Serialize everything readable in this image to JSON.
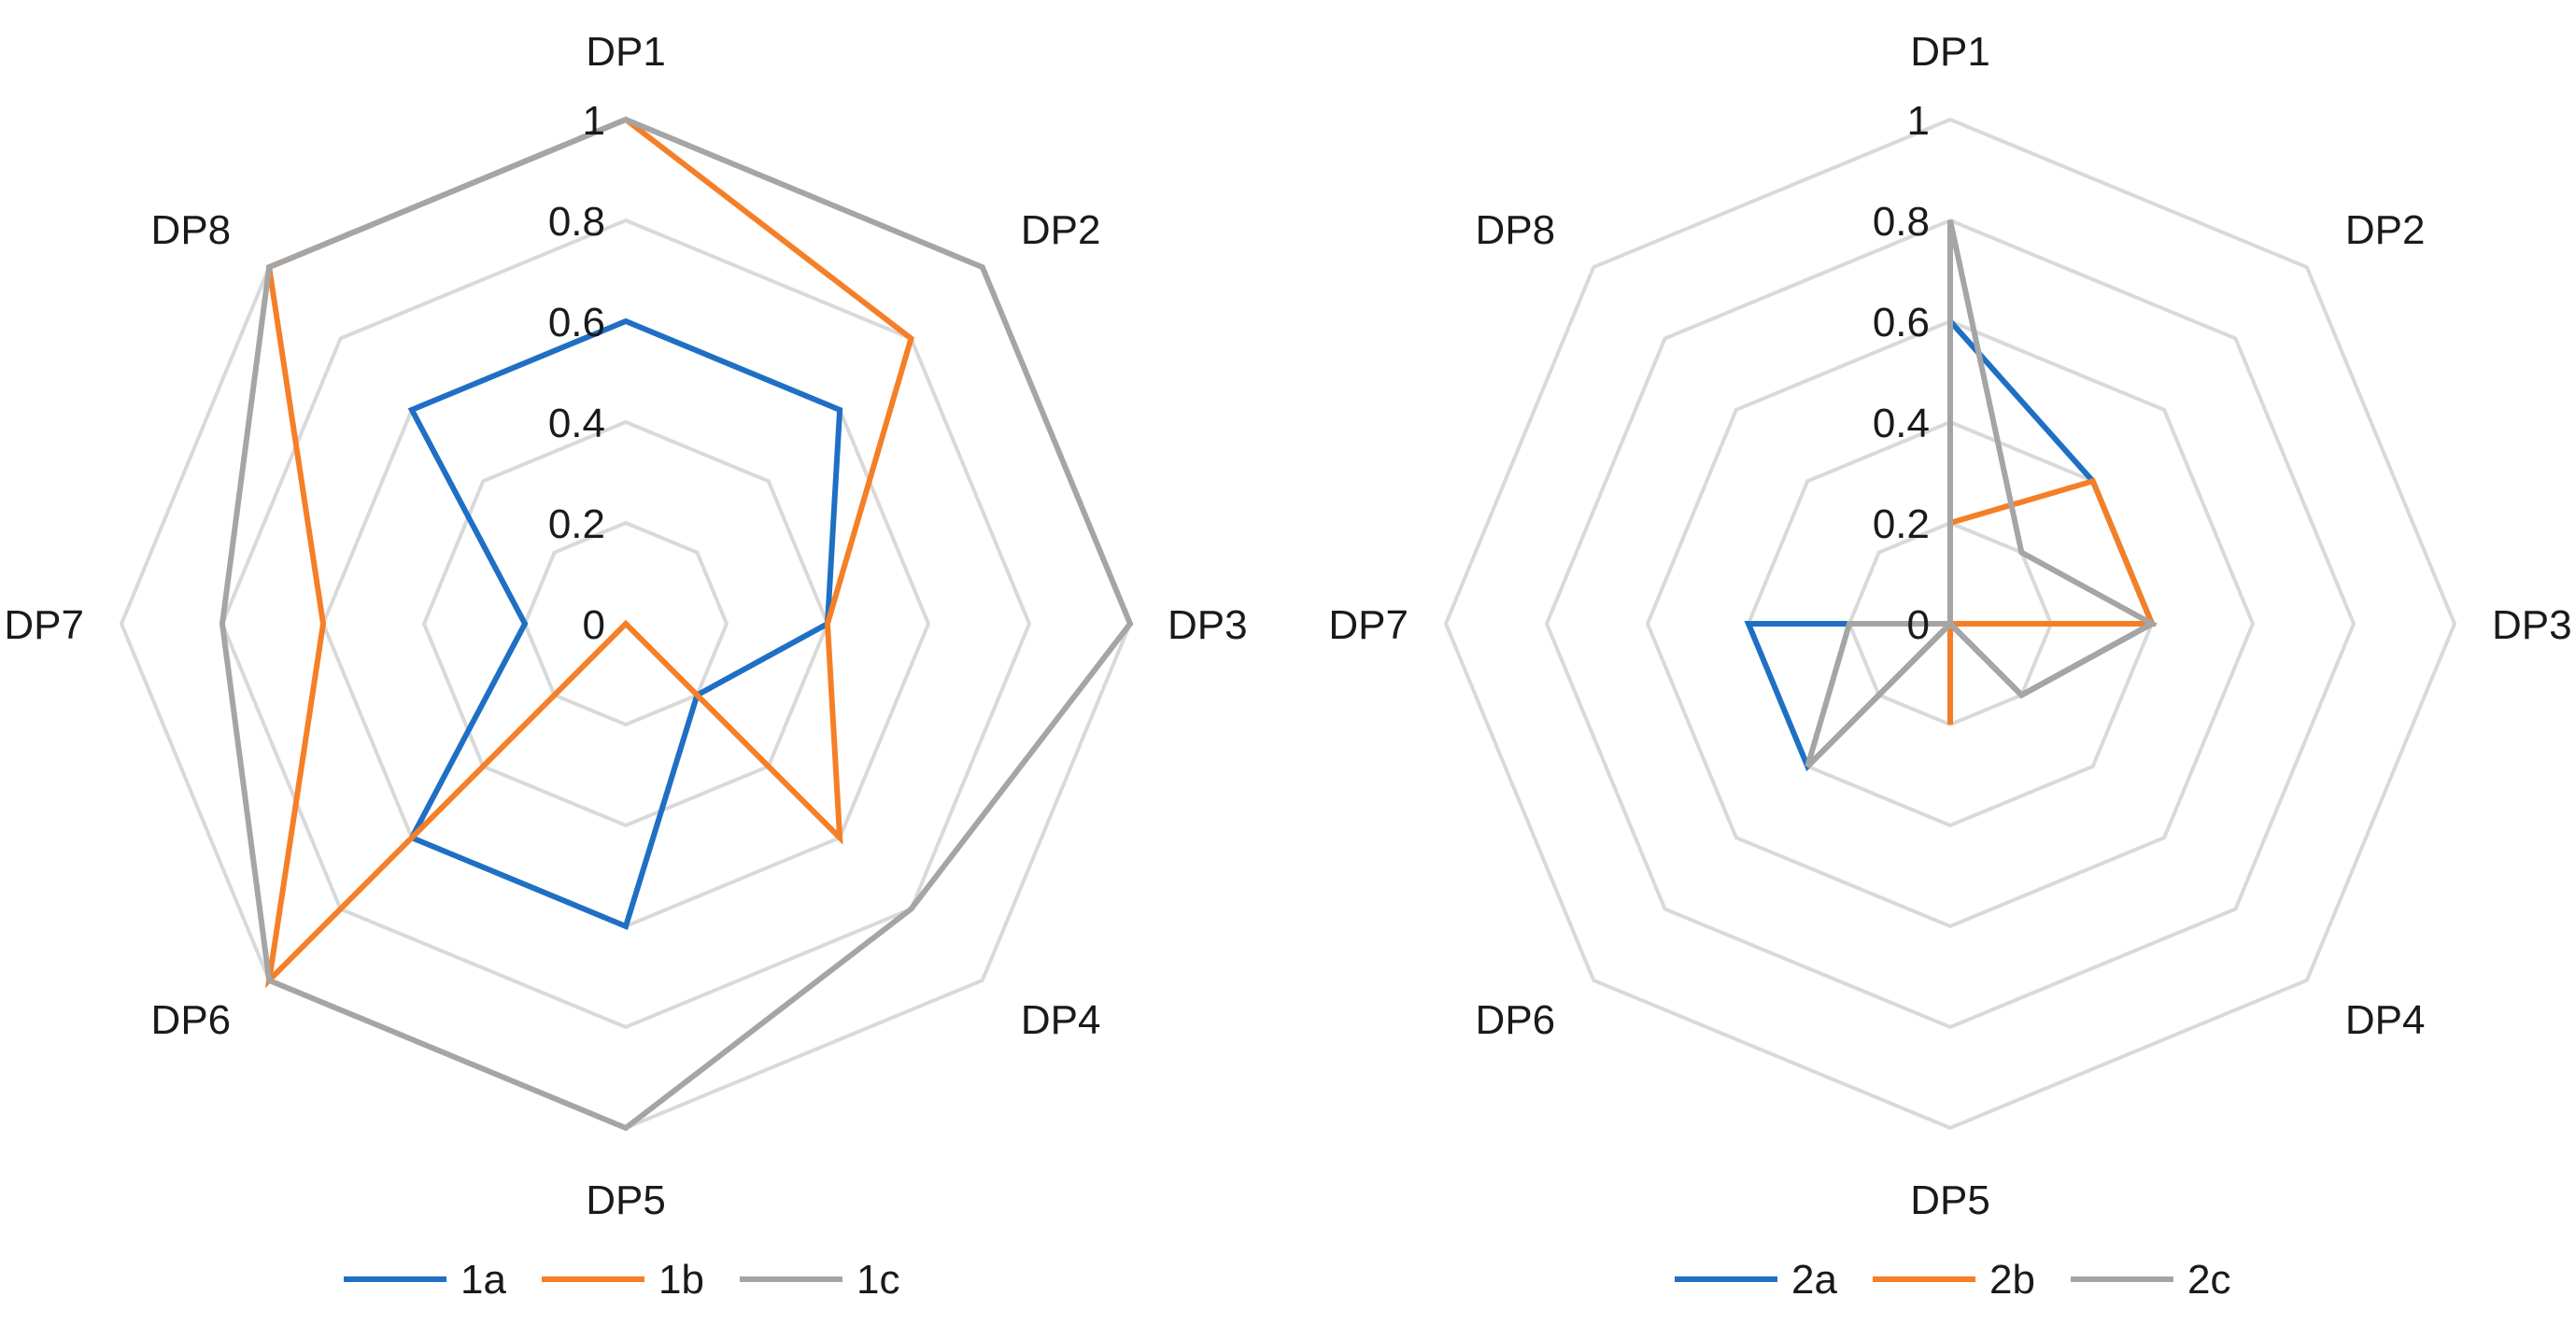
{
  "chart_data": [
    {
      "type": "radar",
      "categories": [
        "DP1",
        "DP2",
        "DP3",
        "DP4",
        "DP5",
        "DP6",
        "DP7",
        "DP8"
      ],
      "ticks": [
        "0",
        "0.2",
        "0.4",
        "0.6",
        "0.8",
        "1"
      ],
      "tick_values": [
        0,
        0.2,
        0.4,
        0.6,
        0.8,
        1
      ],
      "range": [
        0,
        1
      ],
      "legend_position": "bottom",
      "series": [
        {
          "name": "1a",
          "color": "#1f6fc5",
          "values": [
            0.6,
            0.6,
            0.4,
            0.2,
            0.6,
            0.6,
            0.2,
            0.6
          ]
        },
        {
          "name": "1b",
          "color": "#f57f27",
          "values": [
            1.0,
            0.8,
            0.4,
            0.6,
            0.0,
            1.0,
            0.6,
            1.0
          ]
        },
        {
          "name": "1c",
          "color": "#a5a5a5",
          "values": [
            1.0,
            1.0,
            1.0,
            0.8,
            1.0,
            1.0,
            0.8,
            1.0
          ]
        }
      ]
    },
    {
      "type": "radar",
      "categories": [
        "DP1",
        "DP2",
        "DP3",
        "DP4",
        "DP5",
        "DP6",
        "DP7",
        "DP8"
      ],
      "ticks": [
        "0",
        "0.2",
        "0.4",
        "0.6",
        "0.8",
        "1"
      ],
      "tick_values": [
        0,
        0.2,
        0.4,
        0.6,
        0.8,
        1
      ],
      "range": [
        0,
        1
      ],
      "legend_position": "bottom",
      "series": [
        {
          "name": "2a",
          "color": "#1f6fc5",
          "values": [
            0.6,
            0.4,
            0.4,
            0.2,
            0.0,
            0.4,
            0.4,
            0.0
          ]
        },
        {
          "name": "2b",
          "color": "#f57f27",
          "values": [
            0.2,
            0.4,
            0.4,
            0.0,
            0.2,
            0.0,
            0.2,
            0.0
          ]
        },
        {
          "name": "2c",
          "color": "#a5a5a5",
          "values": [
            0.8,
            0.2,
            0.4,
            0.2,
            0.0,
            0.4,
            0.2,
            0.0
          ]
        }
      ]
    }
  ]
}
